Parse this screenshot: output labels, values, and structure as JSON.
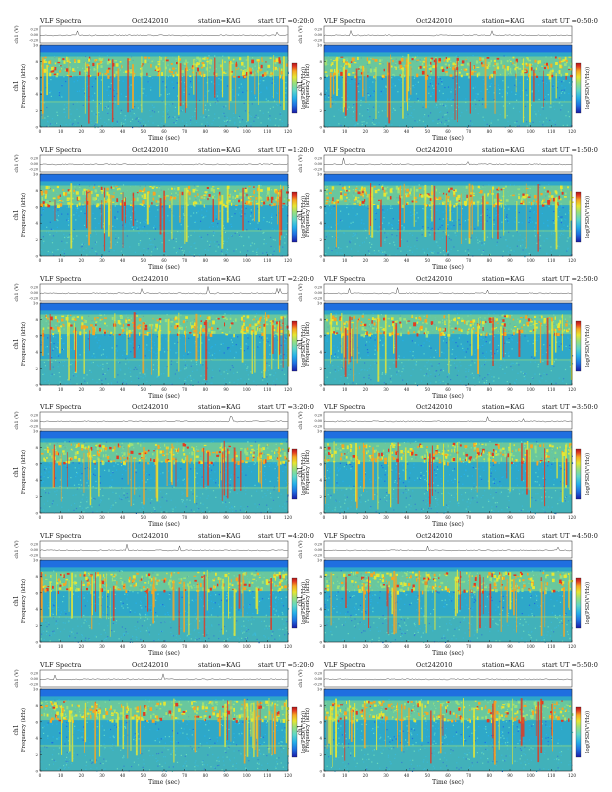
{
  "chart_data": [
    {
      "type": "heatmap",
      "title_left": "VLF Spectra",
      "date": "Oct242010",
      "station": "station=KAG",
      "start": "start UT =0:20:0",
      "panel_label": "ch1",
      "ylabel": "Frequency (kHz)",
      "xlabel": "Time (sec)",
      "top_ylabel": "ch1 (V)",
      "colorbar_label": "log(PSD(V²/Hz))",
      "xlim": [
        0,
        120
      ],
      "ylim": [
        0,
        10
      ],
      "x_ticks": [
        0,
        10,
        20,
        30,
        40,
        50,
        60,
        70,
        80,
        90,
        100,
        110,
        120
      ],
      "y_ticks": [
        0,
        2,
        4,
        6,
        8,
        10
      ],
      "top_ticks": [
        "0.20",
        "0.00",
        "-0.20"
      ]
    },
    {
      "type": "heatmap",
      "title_left": "VLF Spectra",
      "date": "Oct242010",
      "station": "station=KAG",
      "start": "start UT =0:50:0",
      "panel_label": "ch1",
      "ylabel": "Frequency (kHz)",
      "xlabel": "Time (sec)",
      "top_ylabel": "ch1 (V)",
      "colorbar_label": "log(PSD(V²/Hz))",
      "xlim": [
        0,
        120
      ],
      "ylim": [
        0,
        10
      ],
      "x_ticks": [
        0,
        10,
        20,
        30,
        40,
        50,
        60,
        70,
        80,
        90,
        100,
        110,
        120
      ],
      "y_ticks": [
        0,
        2,
        4,
        6,
        8,
        10
      ],
      "top_ticks": [
        "0.20",
        "0.00",
        "-0.20"
      ]
    },
    {
      "type": "heatmap",
      "title_left": "VLF Spectra",
      "date": "Oct242010",
      "station": "station=KAG",
      "start": "start UT =1:20:0",
      "panel_label": "ch1",
      "ylabel": "Frequency (kHz)",
      "xlabel": "Time (sec)",
      "top_ylabel": "ch1 (V)",
      "colorbar_label": "log(PSD(V²/Hz))",
      "xlim": [
        0,
        120
      ],
      "ylim": [
        0,
        10
      ],
      "x_ticks": [
        0,
        10,
        20,
        30,
        40,
        50,
        60,
        70,
        80,
        90,
        100,
        110,
        120
      ],
      "y_ticks": [
        0,
        2,
        4,
        6,
        8,
        10
      ],
      "top_ticks": [
        "0.20",
        "0.00",
        "-0.20"
      ]
    },
    {
      "type": "heatmap",
      "title_left": "VLF Spectra",
      "date": "Oct242010",
      "station": "station=KAG",
      "start": "start UT =1:50:0",
      "panel_label": "ch1",
      "ylabel": "Frequency (kHz)",
      "xlabel": "Time (sec)",
      "top_ylabel": "ch1 (V)",
      "colorbar_label": "log(PSD(V²/Hz))",
      "xlim": [
        0,
        120
      ],
      "ylim": [
        0,
        10
      ],
      "x_ticks": [
        0,
        10,
        20,
        30,
        40,
        50,
        60,
        70,
        80,
        90,
        100,
        110,
        120
      ],
      "y_ticks": [
        0,
        2,
        4,
        6,
        8,
        10
      ],
      "top_ticks": [
        "0.20",
        "0.00",
        "-0.20"
      ]
    },
    {
      "type": "heatmap",
      "title_left": "VLF Spectra",
      "date": "Oct242010",
      "station": "station=KAG",
      "start": "start UT =2:20:0",
      "panel_label": "ch1",
      "ylabel": "Frequency (kHz)",
      "xlabel": "Time (sec)",
      "top_ylabel": "ch1 (V)",
      "colorbar_label": "log(PSD(V²/Hz))",
      "xlim": [
        0,
        120
      ],
      "ylim": [
        0,
        10
      ],
      "x_ticks": [
        0,
        10,
        20,
        30,
        40,
        50,
        60,
        70,
        80,
        90,
        100,
        110,
        120
      ],
      "y_ticks": [
        0,
        2,
        4,
        6,
        8,
        10
      ],
      "top_ticks": [
        "0.20",
        "0.00",
        "-0.20"
      ]
    },
    {
      "type": "heatmap",
      "title_left": "VLF Spectra",
      "date": "Oct242010",
      "station": "station=KAG",
      "start": "start UT =2:50:0",
      "panel_label": "ch1",
      "ylabel": "Frequency (kHz)",
      "xlabel": "Time (sec)",
      "top_ylabel": "ch1 (V)",
      "colorbar_label": "log(PSD(V²/Hz))",
      "xlim": [
        0,
        120
      ],
      "ylim": [
        0,
        10
      ],
      "x_ticks": [
        0,
        10,
        20,
        30,
        40,
        50,
        60,
        70,
        80,
        90,
        100,
        110,
        120
      ],
      "y_ticks": [
        0,
        2,
        4,
        6,
        8,
        10
      ],
      "top_ticks": [
        "0.20",
        "0.00",
        "-0.20"
      ]
    },
    {
      "type": "heatmap",
      "title_left": "VLF Spectra",
      "date": "Oct242010",
      "station": "station=KAG",
      "start": "start UT =3:20:0",
      "panel_label": "ch1",
      "ylabel": "Frequency (kHz)",
      "xlabel": "Time (sec)",
      "top_ylabel": "ch1 (V)",
      "colorbar_label": "log(PSD(V²/Hz))",
      "xlim": [
        0,
        120
      ],
      "ylim": [
        0,
        10
      ],
      "x_ticks": [
        0,
        10,
        20,
        30,
        40,
        50,
        60,
        70,
        80,
        90,
        100,
        110,
        120
      ],
      "y_ticks": [
        0,
        2,
        4,
        6,
        8,
        10
      ],
      "top_ticks": [
        "0.20",
        "0.00",
        "-0.20"
      ]
    },
    {
      "type": "heatmap",
      "title_left": "VLF Spectra",
      "date": "Oct242010",
      "station": "station=KAG",
      "start": "start UT =3:50:0",
      "panel_label": "ch1",
      "ylabel": "Frequency (kHz)",
      "xlabel": "Time (sec)",
      "top_ylabel": "ch1 (V)",
      "colorbar_label": "log(PSD(V²/Hz))",
      "xlim": [
        0,
        120
      ],
      "ylim": [
        0,
        10
      ],
      "x_ticks": [
        0,
        10,
        20,
        30,
        40,
        50,
        60,
        70,
        80,
        90,
        100,
        110,
        120
      ],
      "y_ticks": [
        0,
        2,
        4,
        6,
        8,
        10
      ],
      "top_ticks": [
        "0.20",
        "0.00",
        "-0.20"
      ]
    },
    {
      "type": "heatmap",
      "title_left": "VLF Spectra",
      "date": "Oct242010",
      "station": "station=KAG",
      "start": "start UT =4:20:0",
      "panel_label": "ch1",
      "ylabel": "Frequency (kHz)",
      "xlabel": "Time (sec)",
      "top_ylabel": "ch1 (V)",
      "colorbar_label": "log(PSD(V²/Hz))",
      "xlim": [
        0,
        120
      ],
      "ylim": [
        0,
        10
      ],
      "x_ticks": [
        0,
        10,
        20,
        30,
        40,
        50,
        60,
        70,
        80,
        90,
        100,
        110,
        120
      ],
      "y_ticks": [
        0,
        2,
        4,
        6,
        8,
        10
      ],
      "top_ticks": [
        "0.20",
        "0.00",
        "-0.20"
      ]
    },
    {
      "type": "heatmap",
      "title_left": "VLF Spectra",
      "date": "Oct242010",
      "station": "station=KAG",
      "start": "start UT =4:50:0",
      "panel_label": "ch1",
      "ylabel": "Frequency (kHz)",
      "xlabel": "Time (sec)",
      "top_ylabel": "ch1 (V)",
      "colorbar_label": "log(PSD(V²/Hz))",
      "xlim": [
        0,
        120
      ],
      "ylim": [
        0,
        10
      ],
      "x_ticks": [
        0,
        10,
        20,
        30,
        40,
        50,
        60,
        70,
        80,
        90,
        100,
        110,
        120
      ],
      "y_ticks": [
        0,
        2,
        4,
        6,
        8,
        10
      ],
      "top_ticks": [
        "0.20",
        "0.00",
        "-0.20"
      ]
    },
    {
      "type": "heatmap",
      "title_left": "VLF Spectra",
      "date": "Oct242010",
      "station": "station=KAG",
      "start": "start UT =5:20:0",
      "panel_label": "ch1",
      "ylabel": "Frequency (kHz)",
      "xlabel": "Time (sec)",
      "top_ylabel": "ch1 (V)",
      "colorbar_label": "log(PSD(V²/Hz))",
      "xlim": [
        0,
        120
      ],
      "ylim": [
        0,
        10
      ],
      "x_ticks": [
        0,
        10,
        20,
        30,
        40,
        50,
        60,
        70,
        80,
        90,
        100,
        110,
        120
      ],
      "y_ticks": [
        0,
        2,
        4,
        6,
        8,
        10
      ],
      "top_ticks": [
        "0.20",
        "0.00",
        "-0.20"
      ]
    },
    {
      "type": "heatmap",
      "title_left": "VLF Spectra",
      "date": "Oct242010",
      "station": "station=KAG",
      "start": "start UT =5:50:0",
      "panel_label": "ch1",
      "ylabel": "Frequency (kHz)",
      "xlabel": "Time (sec)",
      "top_ylabel": "ch1 (V)",
      "colorbar_label": "log(PSD(V²/Hz))",
      "xlim": [
        0,
        120
      ],
      "ylim": [
        0,
        10
      ],
      "x_ticks": [
        0,
        10,
        20,
        30,
        40,
        50,
        60,
        70,
        80,
        90,
        100,
        110,
        120
      ],
      "y_ticks": [
        0,
        2,
        4,
        6,
        8,
        10
      ],
      "top_ticks": [
        "0.20",
        "0.00",
        "-0.20"
      ]
    }
  ],
  "colors": {
    "colormap": [
      "#1a1aa6",
      "#1f6fe0",
      "#27b0e8",
      "#5fd7c8",
      "#9be07a",
      "#e6e632",
      "#f6a623",
      "#e23a22",
      "#b0151a"
    ],
    "background_noise": "#2ea8c8"
  }
}
